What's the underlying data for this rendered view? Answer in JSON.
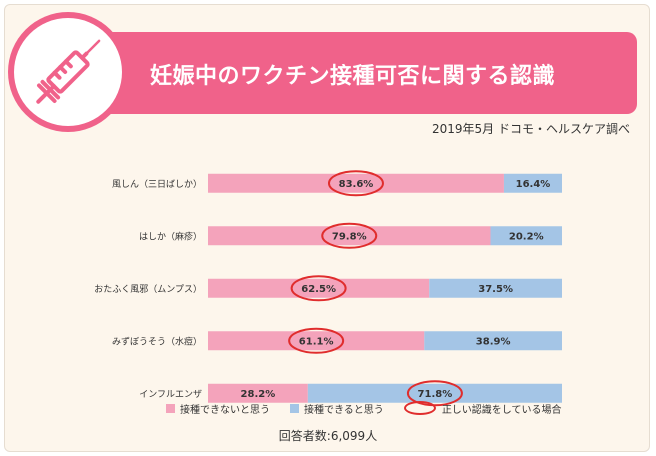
{
  "header": {
    "title": "妊娠中のワクチン接種可否に関する認識",
    "icon": "syringe-icon",
    "accent_color": "#f0628a"
  },
  "source": "2019年5月 ドコモ・ヘルスケア調べ",
  "respondents": "回答者数:6,099人",
  "legend": {
    "no": "接種できないと思う",
    "yes": "接種できると思う",
    "correct": "正しい認識をしている場合"
  },
  "chart_data": {
    "type": "bar",
    "orientation": "horizontal",
    "stacked": true,
    "percent_stacked": true,
    "categories": [
      "風しん（三日ばしか）",
      "はしか（麻疹）",
      "おたふく風邪（ムンプス）",
      "みずぼうそう（水痘）",
      "インフルエンザ"
    ],
    "series": [
      {
        "name": "接種できないと思う",
        "values": [
          83.6,
          79.8,
          62.5,
          61.1,
          28.2
        ],
        "labels": [
          "83.6%",
          "79.8%",
          "62.5%",
          "61.1%",
          "28.2%"
        ],
        "color": "#f4a3bb"
      },
      {
        "name": "接種できると思う",
        "values": [
          16.4,
          20.2,
          37.5,
          38.9,
          71.8
        ],
        "labels": [
          "16.4%",
          "20.2%",
          "37.5%",
          "38.9%",
          "71.8%"
        ],
        "color": "#a4c5e6"
      }
    ],
    "correct_answer": [
      "接種できないと思う",
      "接種できないと思う",
      "接種できないと思う",
      "接種できないと思う",
      "接種できると思う"
    ],
    "correct_marker_color": "#e02d2d",
    "xlim": [
      0,
      100
    ],
    "grid": false,
    "legend_position": "bottom"
  }
}
